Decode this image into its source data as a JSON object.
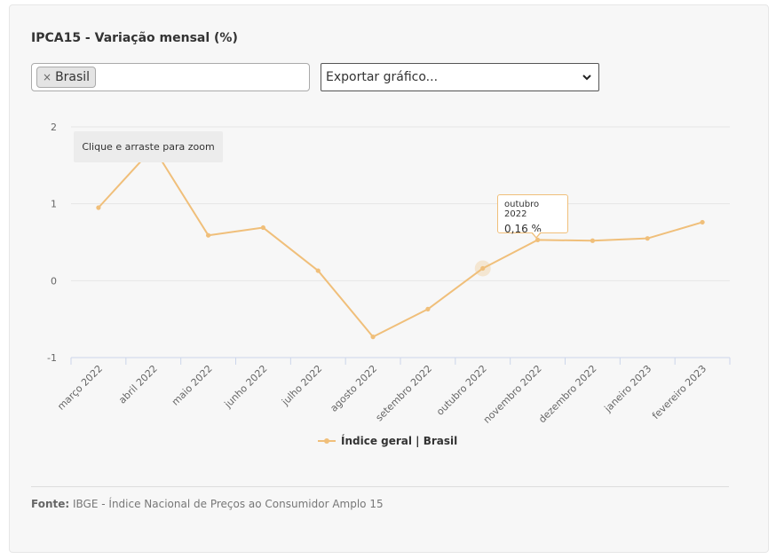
{
  "title": "IPCA15 - Variação mensal (%)",
  "filter": {
    "selected_chip": "Brasil",
    "remove_glyph": "×"
  },
  "export": {
    "placeholder": "Exportar gráfico..."
  },
  "zoom_hint": "Clique e arraste para zoom",
  "tooltip": {
    "period": "outubro 2022",
    "value": "0,16 %"
  },
  "legend": {
    "label": "Índice geral | Brasil"
  },
  "source": {
    "label": "Fonte:",
    "text": "IBGE - Índice Nacional de Preços ao Consumidor Amplo 15"
  },
  "colors": {
    "series": "#f0bf7a",
    "grid": "#e6e6e6",
    "axis": "#ccd6eb"
  },
  "chart_data": {
    "type": "line",
    "title": "IPCA15 - Variação mensal (%)",
    "categories": [
      "março 2022",
      "abril 2022",
      "maio 2022",
      "junho 2022",
      "julho 2022",
      "agosto 2022",
      "setembro 2022",
      "outubro 2022",
      "novembro 2022",
      "dezembro 2022",
      "janeiro 2023",
      "fevereiro 2023"
    ],
    "y_ticks": [
      "2",
      "1",
      "0",
      "-1"
    ],
    "ylim": [
      -1,
      2
    ],
    "series": [
      {
        "name": "Índice geral | Brasil",
        "values": [
          0.95,
          1.73,
          0.59,
          0.69,
          0.13,
          -0.73,
          -0.37,
          0.16,
          0.53,
          0.52,
          0.55,
          0.76
        ]
      }
    ],
    "highlight_index": 7,
    "legend_position": "bottom-center",
    "grid": true
  }
}
